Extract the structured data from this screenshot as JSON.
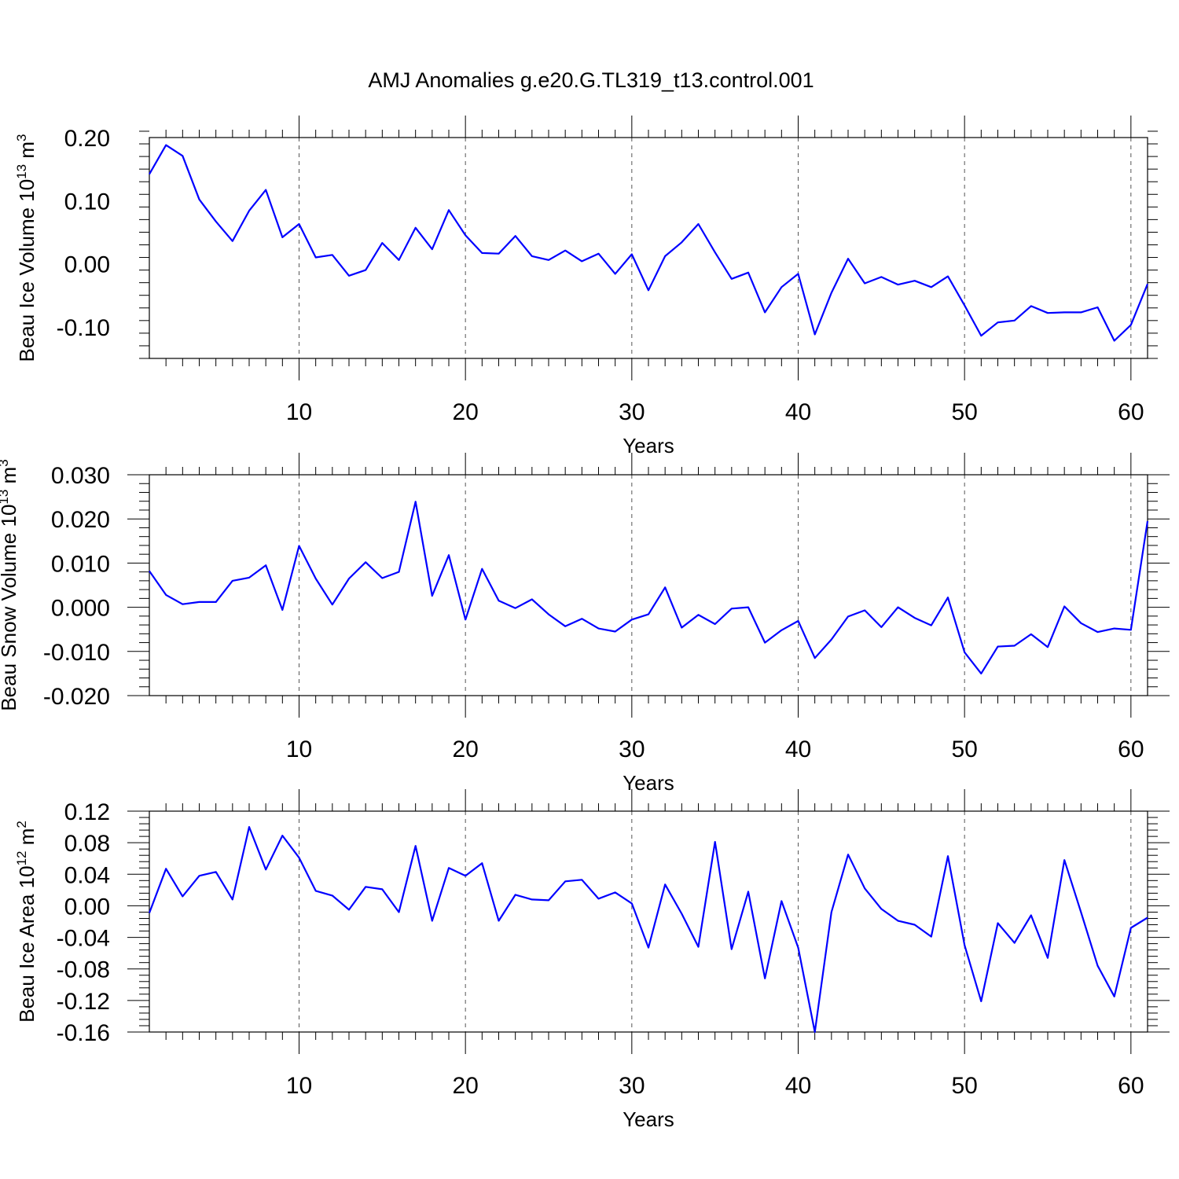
{
  "title": "AMJ Anomalies g.e20.G.TL319_t13.control.001",
  "chart_data": [
    {
      "type": "line",
      "ylabel": "Beau Ice Volume 10",
      "ylabel_exp": "13",
      "ylabel_unit": " m",
      "ylabel_unit_exp": "3",
      "xlabel": "Years",
      "xlim": [
        1,
        61
      ],
      "ylim": [
        -0.15,
        0.2
      ],
      "yticks": [
        -0.1,
        0.0,
        0.1,
        0.2
      ],
      "ytick_labels": [
        "-0.10",
        "0.00",
        "0.10",
        "0.20"
      ],
      "xticks": [
        10,
        20,
        30,
        40,
        50,
        60
      ],
      "xtick_labels": [
        "10",
        "20",
        "30",
        "40",
        "50",
        "60"
      ],
      "grid_x": true,
      "color": "#0000ff",
      "x": [
        1,
        2,
        3,
        4,
        5,
        6,
        7,
        8,
        9,
        10,
        11,
        12,
        13,
        14,
        15,
        16,
        17,
        18,
        19,
        20,
        21,
        22,
        23,
        24,
        25,
        26,
        27,
        28,
        29,
        30,
        31,
        32,
        33,
        34,
        35,
        36,
        37,
        38,
        39,
        40,
        41,
        42,
        43,
        44,
        45,
        46,
        47,
        48,
        49,
        50,
        51,
        52,
        53,
        54,
        55,
        56,
        57,
        58,
        59,
        60,
        61
      ],
      "values": [
        0.142,
        0.188,
        0.171,
        0.102,
        0.067,
        0.036,
        0.084,
        0.117,
        0.042,
        0.063,
        0.01,
        0.014,
        -0.019,
        -0.01,
        0.033,
        0.006,
        0.057,
        0.023,
        0.085,
        0.045,
        0.017,
        0.016,
        0.044,
        0.012,
        0.006,
        0.021,
        0.004,
        0.016,
        -0.016,
        0.015,
        -0.042,
        0.012,
        0.034,
        0.063,
        0.018,
        -0.024,
        -0.014,
        -0.077,
        -0.037,
        -0.016,
        -0.112,
        -0.046,
        0.008,
        -0.031,
        -0.021,
        -0.033,
        -0.027,
        -0.037,
        -0.02,
        -0.066,
        -0.114,
        -0.093,
        -0.09,
        -0.067,
        -0.078,
        -0.077,
        -0.077,
        -0.069,
        -0.122,
        -0.097,
        -0.032
      ]
    },
    {
      "type": "line",
      "ylabel": "Beau Snow Volume 10",
      "ylabel_exp": "13",
      "ylabel_unit": " m",
      "ylabel_unit_exp": "3",
      "xlabel": "Years",
      "xlim": [
        1,
        61
      ],
      "ylim": [
        -0.02,
        0.03
      ],
      "yticks": [
        -0.02,
        -0.01,
        0.0,
        0.01,
        0.02,
        0.03
      ],
      "ytick_labels": [
        "-0.020",
        "-0.010",
        "0.000",
        "0.010",
        "0.020",
        "0.030"
      ],
      "xticks": [
        10,
        20,
        30,
        40,
        50,
        60
      ],
      "xtick_labels": [
        "10",
        "20",
        "30",
        "40",
        "50",
        "60"
      ],
      "grid_x": true,
      "color": "#0000ff",
      "x": [
        1,
        2,
        3,
        4,
        5,
        6,
        7,
        8,
        9,
        10,
        11,
        12,
        13,
        14,
        15,
        16,
        17,
        18,
        19,
        20,
        21,
        22,
        23,
        24,
        25,
        26,
        27,
        28,
        29,
        30,
        31,
        32,
        33,
        34,
        35,
        36,
        37,
        38,
        39,
        40,
        41,
        42,
        43,
        44,
        45,
        46,
        47,
        48,
        49,
        50,
        51,
        52,
        53,
        54,
        55,
        56,
        57,
        58,
        59,
        60,
        61
      ],
      "values": [
        0.0082,
        0.0028,
        0.0007,
        0.0012,
        0.0012,
        0.006,
        0.0067,
        0.0095,
        -0.0006,
        0.0139,
        0.0065,
        0.0006,
        0.0065,
        0.0102,
        0.0066,
        0.008,
        0.0239,
        0.0026,
        0.0118,
        -0.0028,
        0.0087,
        0.0015,
        -0.0002,
        0.0018,
        -0.0016,
        -0.0043,
        -0.0026,
        -0.0048,
        -0.0055,
        -0.0028,
        -0.0016,
        0.0045,
        -0.0046,
        -0.0017,
        -0.0038,
        -0.0003,
        0.0,
        -0.008,
        -0.0052,
        -0.0031,
        -0.0115,
        -0.0073,
        -0.0021,
        -0.0007,
        -0.0045,
        0.0,
        -0.0024,
        -0.0041,
        0.0022,
        -0.0102,
        -0.015,
        -0.0089,
        -0.0087,
        -0.0061,
        -0.009,
        0.0002,
        -0.0036,
        -0.0056,
        -0.0048,
        -0.0051,
        0.0195
      ]
    },
    {
      "type": "line",
      "ylabel": "Beau Ice Area 10",
      "ylabel_exp": "12",
      "ylabel_unit": " m",
      "ylabel_unit_exp": "2",
      "xlabel": "Years",
      "xlim": [
        1,
        61
      ],
      "ylim": [
        -0.16,
        0.12
      ],
      "yticks": [
        -0.16,
        -0.12,
        -0.08,
        -0.04,
        0.0,
        0.04,
        0.08,
        0.12
      ],
      "ytick_labels": [
        "-0.16",
        "-0.12",
        "-0.08",
        "-0.04",
        "0.00",
        "0.04",
        "0.08",
        "0.12"
      ],
      "xticks": [
        10,
        20,
        30,
        40,
        50,
        60
      ],
      "xtick_labels": [
        "10",
        "20",
        "30",
        "40",
        "50",
        "60"
      ],
      "grid_x": true,
      "color": "#0000ff",
      "x": [
        1,
        2,
        3,
        4,
        5,
        6,
        7,
        8,
        9,
        10,
        11,
        12,
        13,
        14,
        15,
        16,
        17,
        18,
        19,
        20,
        21,
        22,
        23,
        24,
        25,
        26,
        27,
        28,
        29,
        30,
        31,
        32,
        33,
        34,
        35,
        36,
        37,
        38,
        39,
        40,
        41,
        42,
        43,
        44,
        45,
        46,
        47,
        48,
        49,
        50,
        51,
        52,
        53,
        54,
        55,
        56,
        57,
        58,
        59,
        60,
        61
      ],
      "values": [
        -0.009,
        0.047,
        0.012,
        0.038,
        0.043,
        0.008,
        0.1,
        0.046,
        0.089,
        0.061,
        0.019,
        0.013,
        -0.005,
        0.024,
        0.021,
        -0.008,
        0.076,
        -0.019,
        0.048,
        0.038,
        0.054,
        -0.019,
        0.014,
        0.008,
        0.007,
        0.031,
        0.033,
        0.009,
        0.017,
        0.003,
        -0.053,
        0.027,
        -0.01,
        -0.052,
        0.081,
        -0.055,
        0.018,
        -0.092,
        0.006,
        -0.053,
        -0.16,
        -0.008,
        0.065,
        0.022,
        -0.004,
        -0.019,
        -0.024,
        -0.039,
        0.063,
        -0.05,
        -0.121,
        -0.022,
        -0.047,
        -0.012,
        -0.066,
        0.058,
        -0.008,
        -0.076,
        -0.115,
        -0.028,
        -0.015
      ]
    }
  ]
}
